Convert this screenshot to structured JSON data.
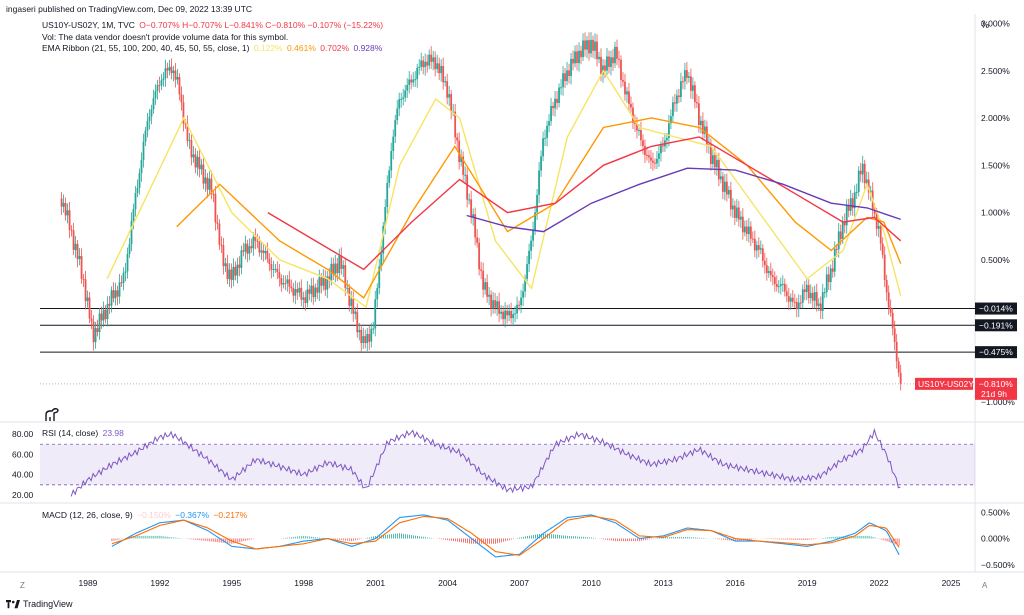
{
  "header": {
    "publisher_line": "ingaseri published on TradingView.com, Dec 09, 2022 13:39 UTC",
    "percent_unit": "%"
  },
  "main_legend": {
    "symbol": "US10Y-US02Y, 1M, TVC",
    "ohlc": "O−0.707%  H−0.707%  L−0.841%  C−0.810%  −0.107% (−15.22%)",
    "vol_note": "Vol: The data vendor doesn't provide volume data for this symbol.",
    "ema_label": "EMA Ribbon (21, 55, 100, 200, 40, 45, 50, 55, close, 1)",
    "ema_values": [
      {
        "text": "0.122%",
        "color": "#f7e463"
      },
      {
        "text": "0.461%",
        "color": "#ff9800"
      },
      {
        "text": "0.702%",
        "color": "#f23645"
      },
      {
        "text": "0.928%",
        "color": "#673ab7"
      }
    ]
  },
  "rsi_legend": {
    "label": "RSI (14, close)",
    "value": "23.98",
    "color": "#7e57c2"
  },
  "macd_legend": {
    "label": "MACD (12, 26, close, 9)",
    "values": [
      {
        "text": "−0.150%",
        "color": "#ffcdd2"
      },
      {
        "text": "−0.367%",
        "color": "#2196f3"
      },
      {
        "text": "−0.217%",
        "color": "#ff6d00"
      }
    ]
  },
  "price_label": {
    "symbol": "US10Y-US02Y",
    "value": "−0.810%",
    "countdown": "21d 9h",
    "color": "#f23645"
  },
  "hline_labels": [
    "−0.014%",
    "−0.191%",
    "−0.475%"
  ],
  "footer": {
    "brand": "TradingView",
    "tz_left": "Z",
    "auto_right": "A"
  },
  "colors": {
    "up": "#26a69a",
    "down": "#ef5350",
    "rsi": "#7e57c2",
    "macd": "#2196f3",
    "signal": "#ff6d00"
  },
  "chart_data": [
    {
      "type": "line",
      "name": "price",
      "ylim": [
        -1.15,
        3.1
      ],
      "y_ticks": [
        "3.000%",
        "2.500%",
        "2.000%",
        "1.500%",
        "1.000%",
        "0.500%",
        "−1.000%"
      ],
      "x_ticks": [
        "1989",
        "1992",
        "1995",
        "1998",
        "2001",
        "2004",
        "2007",
        "2010",
        "2013",
        "2016",
        "2019",
        "2022",
        "2025"
      ],
      "x_tick_years": [
        1989,
        1992,
        1995,
        1998,
        2001,
        2004,
        2007,
        2010,
        2013,
        2016,
        2019,
        2022,
        2025
      ],
      "horizontal_lines": [
        -0.014,
        -0.191,
        -0.475
      ],
      "last": -0.81,
      "x": [
        1987.9,
        1988.3,
        1988.8,
        1989.2,
        1989.6,
        1990.0,
        1990.5,
        1991.0,
        1991.5,
        1992.0,
        1992.5,
        1992.8,
        1993.2,
        1993.8,
        1994.2,
        1994.6,
        1995.0,
        1995.5,
        1996.0,
        1996.5,
        1997.0,
        1997.5,
        1998.0,
        1998.5,
        1999.0,
        1999.5,
        2000.0,
        2000.5,
        2000.9,
        2001.3,
        2001.7,
        2002.0,
        2002.5,
        2003.0,
        2003.5,
        2004.0,
        2004.5,
        2005.0,
        2005.5,
        2006.0,
        2006.5,
        2007.0,
        2007.5,
        2008.0,
        2008.5,
        2009.0,
        2009.5,
        2010.0,
        2010.5,
        2011.0,
        2011.5,
        2012.0,
        2012.5,
        2013.0,
        2013.5,
        2014.0,
        2014.5,
        2015.0,
        2015.5,
        2016.0,
        2016.5,
        2017.0,
        2017.5,
        2018.0,
        2018.5,
        2019.0,
        2019.5,
        2020.0,
        2020.5,
        2021.0,
        2021.3,
        2021.7,
        2022.0,
        2022.3,
        2022.6,
        2022.9
      ],
      "close": [
        1.15,
        0.8,
        0.3,
        -0.3,
        -0.1,
        0.1,
        0.3,
        1.2,
        2.0,
        2.4,
        2.55,
        2.3,
        1.7,
        1.4,
        1.2,
        0.5,
        0.3,
        0.6,
        0.7,
        0.5,
        0.3,
        0.2,
        0.1,
        0.2,
        0.3,
        0.5,
        0.0,
        -0.4,
        -0.2,
        0.8,
        1.8,
        2.2,
        2.4,
        2.6,
        2.6,
        2.3,
        1.6,
        1.0,
        0.2,
        0.0,
        -0.1,
        0.0,
        0.7,
        1.8,
        2.2,
        2.5,
        2.7,
        2.8,
        2.5,
        2.7,
        2.2,
        1.8,
        1.5,
        1.7,
        2.2,
        2.5,
        2.0,
        1.6,
        1.3,
        1.0,
        0.8,
        0.6,
        0.3,
        0.2,
        0.0,
        0.2,
        0.0,
        0.4,
        0.9,
        1.2,
        1.5,
        1.1,
        0.8,
        0.2,
        -0.3,
        -0.81
      ],
      "series": [
        {
          "name": "EMA Ribbon 0.122%",
          "color": "#f7e463",
          "x": [
            1989.8,
            1991.5,
            1993.0,
            1995.0,
            1997.0,
            1999.0,
            2000.6,
            2002.0,
            2003.5,
            2004.5,
            2006.0,
            2007.5,
            2009.0,
            2010.5,
            2012.0,
            2013.5,
            2015.0,
            2017.0,
            2019.0,
            2020.5,
            2021.5,
            2022.2,
            2022.9
          ],
          "values": [
            0.3,
            1.2,
            2.0,
            1.0,
            0.5,
            0.3,
            0.0,
            1.5,
            2.2,
            2.0,
            0.7,
            0.2,
            1.8,
            2.5,
            1.9,
            1.8,
            1.7,
            1.0,
            0.3,
            0.6,
            1.3,
            0.8,
            0.122
          ]
        },
        {
          "name": "EMA Ribbon 0.461%",
          "color": "#ff9800",
          "x": [
            1992.7,
            1994.5,
            1997.0,
            1999.0,
            2000.5,
            2002.5,
            2004.3,
            2006.5,
            2008.5,
            2010.5,
            2012.5,
            2014.5,
            2016.5,
            2018.5,
            2020.0,
            2021.5,
            2022.2,
            2022.9
          ],
          "values": [
            0.85,
            1.3,
            0.7,
            0.4,
            0.1,
            1.0,
            1.7,
            0.8,
            1.1,
            1.9,
            2.0,
            1.9,
            1.5,
            0.9,
            0.6,
            0.95,
            0.9,
            0.461
          ]
        },
        {
          "name": "EMA Ribbon 0.702%",
          "color": "#f23645",
          "x": [
            1996.5,
            1998.5,
            2000.5,
            2002.5,
            2004.5,
            2006.5,
            2008.5,
            2010.5,
            2012.5,
            2014.5,
            2016.5,
            2018.5,
            2020.5,
            2021.8,
            2022.9
          ],
          "values": [
            1.0,
            0.7,
            0.4,
            0.9,
            1.35,
            1.0,
            1.1,
            1.5,
            1.7,
            1.8,
            1.5,
            1.2,
            0.9,
            0.95,
            0.702
          ]
        },
        {
          "name": "EMA Ribbon 0.928%",
          "color": "#673ab7",
          "x": [
            2004.8,
            2006.5,
            2008.0,
            2010.0,
            2012.0,
            2014.0,
            2016.0,
            2018.0,
            2020.0,
            2021.5,
            2022.9
          ],
          "values": [
            0.97,
            0.85,
            0.8,
            1.1,
            1.3,
            1.47,
            1.45,
            1.3,
            1.1,
            1.05,
            0.928
          ]
        }
      ]
    },
    {
      "type": "line",
      "name": "RSI",
      "ylim": [
        15,
        88
      ],
      "y_ticks": [
        "80.00",
        "60.00",
        "40.00",
        "20.00"
      ],
      "band": [
        30,
        70
      ],
      "x": [
        1988.3,
        1989.0,
        1990.0,
        1991.0,
        1992.0,
        1992.5,
        1993.0,
        1994.0,
        1995.0,
        1996.0,
        1997.0,
        1998.0,
        1999.0,
        2000.0,
        2000.6,
        2001.5,
        2002.5,
        2003.5,
        2004.5,
        2005.5,
        2006.5,
        2007.5,
        2008.5,
        2009.5,
        2010.5,
        2011.5,
        2012.5,
        2013.5,
        2014.5,
        2015.5,
        2016.5,
        2017.5,
        2018.5,
        2019.5,
        2020.5,
        2021.3,
        2021.8,
        2022.3,
        2022.9
      ],
      "values": [
        20,
        35,
        50,
        62,
        77,
        80,
        72,
        55,
        35,
        55,
        48,
        40,
        52,
        45,
        25,
        72,
        82,
        70,
        62,
        40,
        25,
        28,
        70,
        80,
        72,
        60,
        50,
        55,
        65,
        50,
        45,
        40,
        35,
        38,
        55,
        65,
        82,
        60,
        23.98
      ]
    },
    {
      "type": "line",
      "name": "MACD",
      "ylim": [
        -0.6,
        0.6
      ],
      "y_ticks": [
        "0.500%",
        "0.000%",
        "−0.500%"
      ],
      "x": [
        1990.0,
        1991.0,
        1992.0,
        1993.0,
        1994.0,
        1995.0,
        1996.0,
        1997.0,
        1998.0,
        1999.0,
        2000.0,
        2001.0,
        2002.0,
        2003.0,
        2004.0,
        2005.0,
        2006.0,
        2007.0,
        2008.0,
        2009.0,
        2010.0,
        2011.0,
        2012.0,
        2013.0,
        2014.0,
        2015.0,
        2016.0,
        2017.0,
        2018.0,
        2019.0,
        2020.0,
        2021.0,
        2021.6,
        2022.3,
        2022.9
      ],
      "macd": [
        -0.15,
        0.1,
        0.3,
        0.35,
        0.15,
        -0.15,
        -0.2,
        -0.15,
        -0.05,
        0.0,
        -0.15,
        0.0,
        0.4,
        0.45,
        0.35,
        0.0,
        -0.35,
        -0.3,
        0.1,
        0.4,
        0.45,
        0.3,
        0.0,
        0.05,
        0.2,
        0.15,
        -0.05,
        -0.05,
        -0.1,
        -0.15,
        -0.05,
        0.1,
        0.3,
        0.15,
        -0.367
      ],
      "signal": [
        -0.1,
        0.05,
        0.25,
        0.35,
        0.2,
        -0.05,
        -0.2,
        -0.15,
        -0.1,
        0.0,
        -0.1,
        -0.05,
        0.3,
        0.42,
        0.38,
        0.1,
        -0.25,
        -0.32,
        0.0,
        0.35,
        0.43,
        0.35,
        0.05,
        0.02,
        0.17,
        0.15,
        0.0,
        -0.05,
        -0.08,
        -0.12,
        -0.08,
        0.05,
        0.25,
        0.2,
        -0.217
      ],
      "histogram": [
        -0.05,
        0.05,
        0.05,
        0.0,
        -0.05,
        -0.1,
        0.0,
        0.0,
        0.05,
        0.0,
        -0.05,
        0.05,
        0.1,
        0.03,
        -0.03,
        -0.1,
        -0.1,
        0.02,
        0.1,
        0.05,
        0.02,
        -0.05,
        -0.05,
        0.03,
        0.03,
        0.0,
        -0.05,
        0.0,
        -0.02,
        -0.03,
        0.03,
        0.05,
        0.05,
        -0.05,
        -0.15
      ]
    }
  ]
}
